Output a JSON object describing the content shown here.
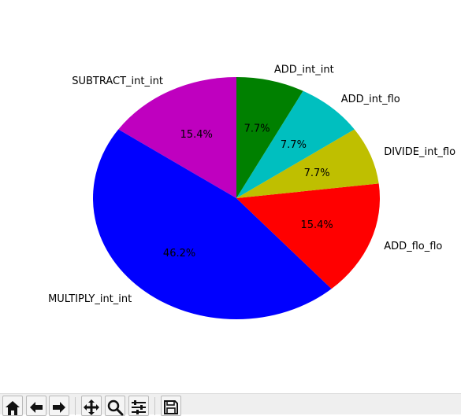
{
  "chart_data": {
    "type": "pie",
    "title": "",
    "start_angle_deg": 90,
    "direction": "counterclockwise",
    "slices": [
      {
        "label": "SUBTRACT_int_int",
        "value": 15.4,
        "pct_text": "15.4%",
        "color": "#bf00bf"
      },
      {
        "label": "MULTIPLY_int_int",
        "value": 46.2,
        "pct_text": "46.2%",
        "color": "#0000ff"
      },
      {
        "label": "ADD_flo_flo",
        "value": 15.4,
        "pct_text": "15.4%",
        "color": "#ff0000"
      },
      {
        "label": "DIVIDE_int_flo",
        "value": 7.7,
        "pct_text": "7.7%",
        "color": "#bfbf00"
      },
      {
        "label": "ADD_int_flo",
        "value": 7.7,
        "pct_text": "7.7%",
        "color": "#00bfbf"
      },
      {
        "label": "ADD_int_int",
        "value": 7.7,
        "pct_text": "7.7%",
        "color": "#008000"
      }
    ]
  },
  "toolbar": {
    "buttons": [
      {
        "name": "home-button",
        "icon": "home-icon"
      },
      {
        "name": "back-button",
        "icon": "arrow-left-icon"
      },
      {
        "name": "forward-button",
        "icon": "arrow-right-icon"
      },
      {
        "name": "pan-button",
        "icon": "move-icon"
      },
      {
        "name": "zoom-button",
        "icon": "magnifier-icon"
      },
      {
        "name": "configure-subplots-button",
        "icon": "sliders-icon"
      },
      {
        "name": "save-button",
        "icon": "floppy-disk-icon"
      }
    ]
  }
}
